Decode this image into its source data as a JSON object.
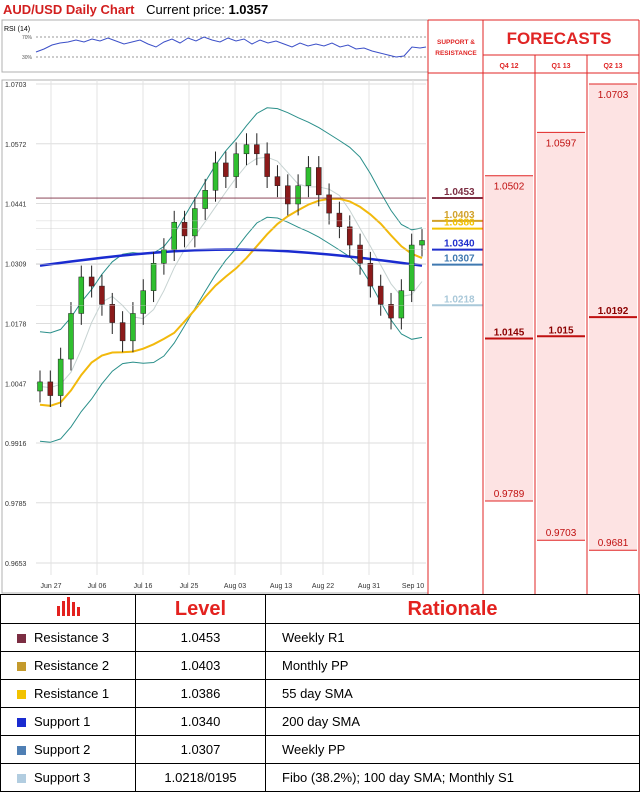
{
  "header": {
    "title": "AUD/USD Daily Chart",
    "price_label": "Current price:",
    "price_value": "1.0357"
  },
  "rsi": {
    "label": "RSI (14)",
    "upper": "70%",
    "lower": "30%"
  },
  "side": {
    "support_resistance": [
      "SUPPORT &",
      "RESISTANCE"
    ],
    "forecasts_title": "FORECASTS",
    "columns": [
      "Q4 12",
      "Q1 13",
      "Q2 13"
    ]
  },
  "chart_data": {
    "type": "candlestick",
    "title": "AUD/USD Daily Chart",
    "y_ticks": [
      "1.0703",
      "1.0572",
      "1.0441",
      "1.0309",
      "1.0178",
      "1.0047",
      "0.9916",
      "0.9785",
      "0.9653"
    ],
    "x_ticks": [
      "Jun 27",
      "Jul 06",
      "Jul 16",
      "Jul 25",
      "Aug 03",
      "Aug 13",
      "Aug 22",
      "Aug 31",
      "Sep 10"
    ],
    "ylim": [
      0.9653,
      1.0703
    ],
    "close_path_approx": [
      1.005,
      1.002,
      1.01,
      1.02,
      1.028,
      1.026,
      1.022,
      1.018,
      1.014,
      1.02,
      1.025,
      1.031,
      1.034,
      1.04,
      1.037,
      1.043,
      1.047,
      1.053,
      1.05,
      1.055,
      1.057,
      1.055,
      1.05,
      1.048,
      1.044,
      1.048,
      1.052,
      1.046,
      1.042,
      1.039,
      1.035,
      1.031,
      1.026,
      1.022,
      1.019,
      1.025,
      1.035,
      1.036
    ],
    "levels": [
      {
        "name": "Resistance 3",
        "value": 1.0453,
        "label": "1.0453",
        "color": "#7b2d42"
      },
      {
        "name": "Resistance 2",
        "value": 1.0403,
        "label": "1.0403",
        "color": "#d1a12a"
      },
      {
        "name": "Resistance 1",
        "value": 1.0386,
        "label": "1.0386",
        "color": "#f2c200"
      },
      {
        "name": "Support 1",
        "value": 1.034,
        "label": "1.0340",
        "color": "#1f2ecc"
      },
      {
        "name": "Support 2",
        "value": 1.0307,
        "label": "1.0307",
        "color": "#3f79b0"
      },
      {
        "name": "Support 3",
        "value": 1.0218,
        "label": "1.0218",
        "color": "#a9c8d9"
      }
    ],
    "forecasts": [
      {
        "period": "Q4 12",
        "high": "1.0502",
        "mid": "1.0145",
        "low": "0.9789",
        "high_v": 1.0502,
        "mid_v": 1.0145,
        "low_v": 0.9789
      },
      {
        "period": "Q1 13",
        "high": "1.0597",
        "mid": "1.015",
        "low": "0.9703",
        "high_v": 1.0597,
        "mid_v": 1.015,
        "low_v": 0.9703
      },
      {
        "period": "Q2 13",
        "high": "1.0703",
        "mid": "1.0192",
        "low": "0.9681",
        "high_v": 1.0703,
        "mid_v": 1.0192,
        "low_v": 0.9681
      }
    ]
  },
  "table": {
    "headers": [
      "Level",
      "Rationale"
    ],
    "rows": [
      {
        "name": "Resistance 3",
        "level": "1.0453",
        "rationale": "Weekly R1",
        "color": "#7b2d42"
      },
      {
        "name": "Resistance 2",
        "level": "1.0403",
        "rationale": "Monthly PP",
        "color": "#c49a2c"
      },
      {
        "name": "Resistance 1",
        "level": "1.0386",
        "rationale": "55 day SMA",
        "color": "#f2c200"
      },
      {
        "name": "Support 1",
        "level": "1.0340",
        "rationale": "200 day SMA",
        "color": "#1a2bd0"
      },
      {
        "name": "Support 2",
        "level": "1.0307",
        "rationale": "Weekly PP",
        "color": "#4f7fb4"
      },
      {
        "name": "Support 3",
        "level": "1.0218/0195",
        "rationale": "Fibo (38.2%); 100 day SMA; Monthly S1",
        "color": "#b2cde0"
      }
    ]
  }
}
